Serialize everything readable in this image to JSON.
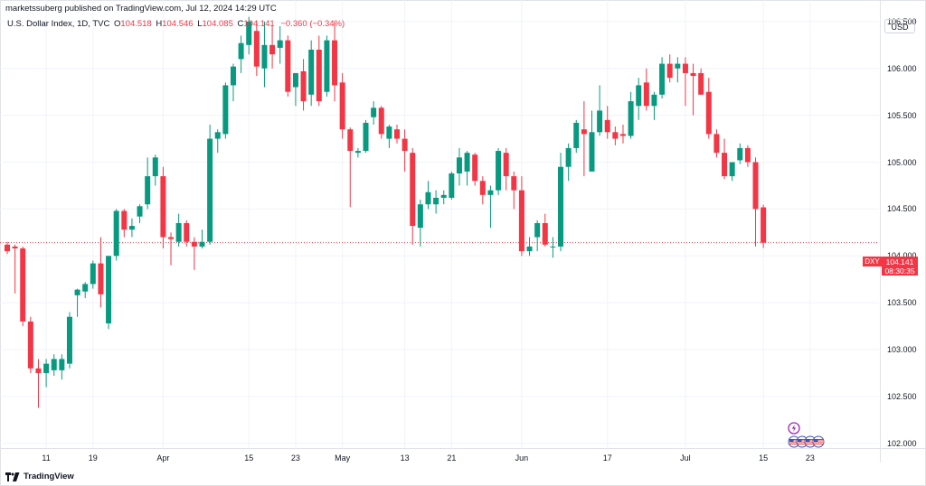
{
  "header": {
    "published": "marketssuberg published on TradingView.com, Jul 12, 2024 14:29 UTC",
    "symbol": "U.S. Dollar Index, 1D, TVC",
    "open_label": "O",
    "open": "104.518",
    "high_label": "H",
    "high": "104.546",
    "low_label": "L",
    "low": "104.085",
    "close_label": "C",
    "close": "104.141",
    "change": "−0.360 (−0.34%)"
  },
  "currency_button": "USD",
  "price_tag": {
    "symbol": "DXY",
    "price": "104.141",
    "countdown": "08:30:35"
  },
  "brand": "TradingView",
  "colors": {
    "up": "#089981",
    "down": "#f23645",
    "grid": "#f0f3fa",
    "text": "#131722"
  },
  "chart_data": {
    "type": "candlestick",
    "title": "U.S. Dollar Index, 1D, TVC",
    "ylim": [
      101.95,
      106.73
    ],
    "y_ticks": [
      "106.500",
      "106.000",
      "105.500",
      "105.000",
      "104.500",
      "104.000",
      "103.500",
      "103.000",
      "102.500",
      "102.000"
    ],
    "y_tick_values": [
      106.5,
      106.0,
      105.5,
      105.0,
      104.5,
      104.0,
      103.5,
      103.0,
      102.5,
      102.0
    ],
    "x_ticks": [
      {
        "label": "11",
        "index": 5
      },
      {
        "label": "19",
        "index": 11
      },
      {
        "label": "Apr",
        "index": 20
      },
      {
        "label": "15",
        "index": 31
      },
      {
        "label": "23",
        "index": 37
      },
      {
        "label": "May",
        "index": 43
      },
      {
        "label": "13",
        "index": 51
      },
      {
        "label": "21",
        "index": 57
      },
      {
        "label": "Jun",
        "index": 66
      },
      {
        "label": "17",
        "index": 77
      },
      {
        "label": "Jul",
        "index": 87
      },
      {
        "label": "15",
        "index": 97
      },
      {
        "label": "23",
        "index": 103
      }
    ],
    "last_price": 104.141,
    "candles": [
      [
        104.12,
        104.15,
        104.02,
        104.05
      ],
      [
        104.1,
        104.12,
        103.6,
        104.08
      ],
      [
        104.08,
        104.1,
        103.25,
        103.3
      ],
      [
        103.3,
        103.35,
        102.75,
        102.8
      ],
      [
        102.8,
        102.9,
        102.38,
        102.75
      ],
      [
        102.75,
        102.9,
        102.6,
        102.85
      ],
      [
        102.78,
        102.95,
        102.72,
        102.9
      ],
      [
        102.78,
        102.95,
        102.68,
        102.9
      ],
      [
        102.85,
        103.4,
        102.8,
        103.35
      ],
      [
        103.58,
        103.65,
        103.35,
        103.64
      ],
      [
        103.62,
        103.72,
        103.55,
        103.7
      ],
      [
        103.7,
        103.95,
        103.65,
        103.92
      ],
      [
        103.92,
        104.2,
        103.45,
        103.59
      ],
      [
        103.28,
        104.0,
        103.22,
        104.0
      ],
      [
        104.0,
        104.5,
        103.95,
        104.48
      ],
      [
        104.48,
        104.5,
        104.2,
        104.28
      ],
      [
        104.28,
        104.4,
        104.2,
        104.32
      ],
      [
        104.42,
        104.55,
        104.35,
        104.53
      ],
      [
        104.55,
        105.05,
        104.5,
        104.85
      ],
      [
        104.85,
        105.08,
        104.75,
        105.05
      ],
      [
        104.85,
        104.95,
        104.08,
        104.2
      ],
      [
        104.2,
        104.25,
        103.9,
        104.18
      ],
      [
        104.15,
        104.45,
        104.1,
        104.35
      ],
      [
        104.35,
        104.38,
        104.1,
        104.15
      ],
      [
        104.15,
        104.2,
        103.85,
        104.1
      ],
      [
        104.1,
        104.28,
        104.08,
        104.15
      ],
      [
        104.15,
        105.4,
        104.12,
        105.25
      ],
      [
        105.25,
        105.35,
        105.1,
        105.32
      ],
      [
        105.3,
        105.85,
        105.25,
        105.82
      ],
      [
        105.82,
        106.05,
        105.65,
        106.02
      ],
      [
        106.1,
        106.35,
        105.95,
        106.27
      ],
      [
        106.25,
        106.55,
        106.15,
        106.5
      ],
      [
        106.4,
        106.5,
        105.92,
        106.02
      ],
      [
        106.0,
        106.5,
        105.8,
        106.25
      ],
      [
        106.25,
        106.45,
        106.0,
        106.15
      ],
      [
        106.22,
        106.45,
        106.05,
        106.3
      ],
      [
        106.3,
        106.35,
        105.7,
        105.75
      ],
      [
        105.8,
        105.95,
        105.6,
        105.95
      ],
      [
        105.97,
        106.1,
        105.55,
        105.65
      ],
      [
        105.72,
        106.3,
        105.6,
        106.2
      ],
      [
        106.2,
        106.35,
        105.6,
        105.65
      ],
      [
        105.75,
        106.35,
        105.7,
        106.3
      ],
      [
        106.3,
        106.5,
        105.65,
        105.82
      ],
      [
        105.85,
        105.95,
        105.25,
        105.35
      ],
      [
        105.35,
        105.37,
        104.52,
        105.12
      ],
      [
        105.1,
        105.15,
        105.05,
        105.12
      ],
      [
        105.12,
        105.45,
        105.1,
        105.42
      ],
      [
        105.48,
        105.65,
        105.4,
        105.58
      ],
      [
        105.58,
        105.6,
        105.25,
        105.3
      ],
      [
        105.25,
        105.4,
        105.15,
        105.38
      ],
      [
        105.35,
        105.4,
        105.2,
        105.25
      ],
      [
        105.25,
        105.35,
        104.9,
        105.12
      ],
      [
        105.1,
        105.15,
        104.12,
        104.32
      ],
      [
        104.3,
        104.6,
        104.1,
        104.55
      ],
      [
        104.55,
        104.8,
        104.5,
        104.68
      ],
      [
        104.55,
        104.7,
        104.45,
        104.62
      ],
      [
        104.62,
        104.7,
        104.55,
        104.65
      ],
      [
        104.62,
        104.9,
        104.6,
        104.88
      ],
      [
        104.88,
        105.15,
        104.75,
        105.05
      ],
      [
        104.9,
        105.12,
        104.75,
        105.1
      ],
      [
        105.08,
        105.1,
        104.75,
        104.8
      ],
      [
        104.8,
        104.85,
        104.55,
        104.65
      ],
      [
        104.65,
        104.75,
        104.3,
        104.7
      ],
      [
        104.7,
        105.15,
        104.65,
        105.12
      ],
      [
        105.1,
        105.15,
        104.7,
        104.85
      ],
      [
        104.85,
        104.9,
        104.5,
        104.7
      ],
      [
        104.7,
        104.85,
        104.0,
        104.05
      ],
      [
        104.05,
        104.2,
        104.0,
        104.1
      ],
      [
        104.2,
        104.38,
        104.05,
        104.35
      ],
      [
        104.35,
        104.45,
        104.1,
        104.12
      ],
      [
        104.1,
        104.2,
        103.98,
        104.1
      ],
      [
        104.1,
        105.1,
        104.05,
        104.95
      ],
      [
        104.95,
        105.2,
        104.8,
        105.15
      ],
      [
        105.15,
        105.45,
        105.1,
        105.42
      ],
      [
        105.35,
        105.65,
        104.85,
        105.3
      ],
      [
        104.9,
        105.55,
        104.9,
        105.32
      ],
      [
        105.32,
        105.82,
        105.28,
        105.55
      ],
      [
        105.45,
        105.6,
        105.25,
        105.32
      ],
      [
        105.32,
        105.38,
        105.18,
        105.25
      ],
      [
        105.3,
        105.4,
        105.2,
        105.28
      ],
      [
        105.28,
        105.75,
        105.25,
        105.65
      ],
      [
        105.6,
        105.9,
        105.45,
        105.82
      ],
      [
        105.85,
        106.0,
        105.55,
        105.6
      ],
      [
        105.6,
        105.75,
        105.45,
        105.72
      ],
      [
        105.72,
        106.12,
        105.68,
        106.05
      ],
      [
        106.05,
        106.15,
        105.85,
        105.9
      ],
      [
        106.0,
        106.12,
        105.85,
        106.05
      ],
      [
        106.05,
        106.12,
        105.6,
        105.95
      ],
      [
        105.95,
        106.05,
        105.5,
        105.92
      ],
      [
        105.95,
        106.0,
        105.72,
        105.72
      ],
      [
        105.75,
        105.9,
        105.25,
        105.3
      ],
      [
        105.3,
        105.35,
        105.05,
        105.1
      ],
      [
        105.1,
        105.25,
        104.82,
        104.85
      ],
      [
        104.85,
        105.0,
        104.8,
        105.0
      ],
      [
        105.02,
        105.2,
        104.98,
        105.15
      ],
      [
        105.15,
        105.18,
        104.95,
        105.0
      ],
      [
        105.0,
        105.05,
        104.1,
        104.5
      ],
      [
        104.518,
        104.546,
        104.085,
        104.141
      ]
    ]
  }
}
